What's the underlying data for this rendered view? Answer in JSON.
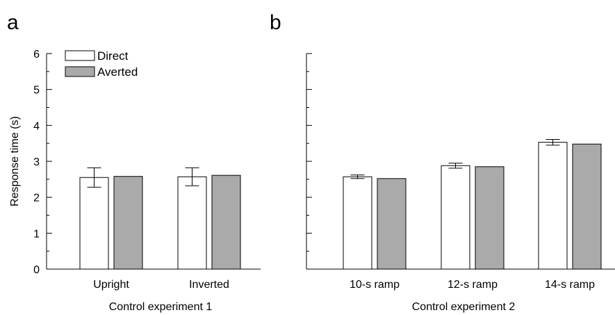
{
  "colors": {
    "direct": "#ffffff",
    "averted": "#aaaaaa",
    "stroke": "#000000"
  },
  "chart_data": [
    {
      "type": "bar",
      "panel": "a",
      "categories": [
        "Upright",
        "Inverted"
      ],
      "series": [
        {
          "name": "Direct",
          "values": [
            2.55,
            2.57
          ],
          "errors": [
            0.27,
            0.25
          ]
        },
        {
          "name": "Averted",
          "values": [
            2.58,
            2.61
          ]
        }
      ],
      "xlabel": "Control experiment 1",
      "ylabel": "Response time (s)",
      "ylim": [
        0,
        6
      ],
      "yticks": [
        "0",
        "1",
        "2",
        "3",
        "4",
        "5",
        "6"
      ],
      "grid": false,
      "legend": {
        "placement": "top-left",
        "entries": [
          "Direct",
          "Averted"
        ]
      }
    },
    {
      "type": "bar",
      "panel": "b",
      "categories": [
        "10-s ramp",
        "12-s ramp",
        "14-s ramp"
      ],
      "series": [
        {
          "name": "Direct",
          "values": [
            2.57,
            2.88,
            3.53
          ],
          "errors": [
            0.05,
            0.07,
            0.08
          ]
        },
        {
          "name": "Averted",
          "values": [
            2.52,
            2.85,
            3.48
          ]
        }
      ],
      "xlabel": "Control experiment 2",
      "ylabel": "",
      "ylim": [
        0,
        6
      ],
      "yticks": [],
      "grid": false
    }
  ]
}
